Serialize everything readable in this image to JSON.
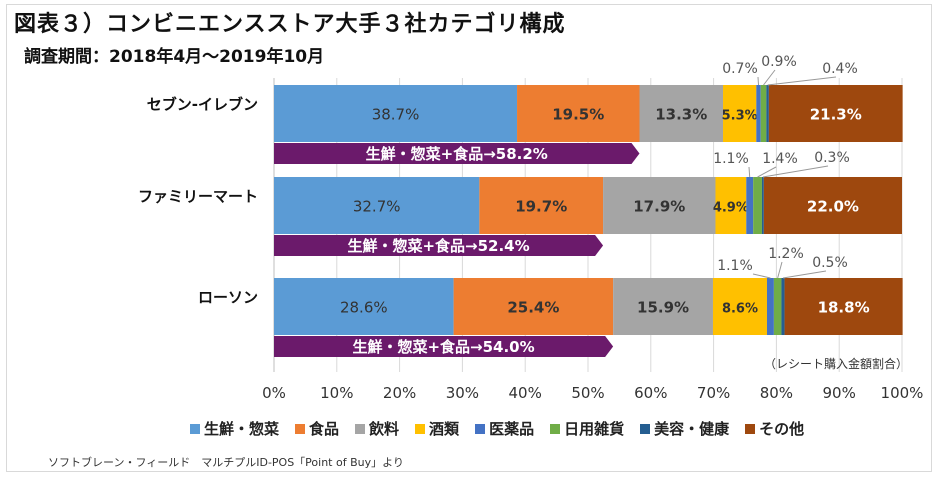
{
  "title": "図表３）コンビニエンスストア大手３社カテゴリ構成",
  "subtitle": "調査期間：2018年4月～2019年10月",
  "note": "（レシート購入金額割合）",
  "source": "ソフトブレーン・フィールド　マルチプルID-POS「Point of Buy」より",
  "chart_data": {
    "type": "bar",
    "orientation": "horizontal",
    "stacked": true,
    "categories": [
      "セブン-イレブン",
      "ファミリーマート",
      "ローソン"
    ],
    "xlim": [
      0,
      100
    ],
    "x_ticks": [
      "0%",
      "10%",
      "20%",
      "30%",
      "40%",
      "50%",
      "60%",
      "70%",
      "80%",
      "90%",
      "100%"
    ],
    "legend_position": "bottom",
    "series": [
      {
        "name": "生鮮・惣菜",
        "color": "#5b9bd5",
        "values": [
          38.7,
          32.7,
          28.6
        ],
        "labels": [
          "38.7%",
          "32.7%",
          "28.6%"
        ]
      },
      {
        "name": "食品",
        "color": "#ed7d31",
        "values": [
          19.5,
          19.7,
          25.4
        ],
        "labels": [
          "19.5%",
          "19.7%",
          "25.4%"
        ]
      },
      {
        "name": "飲料",
        "color": "#a5a5a5",
        "values": [
          13.3,
          17.9,
          15.9
        ],
        "labels": [
          "13.3%",
          "17.9%",
          "15.9%"
        ]
      },
      {
        "name": "酒類",
        "color": "#ffc000",
        "values": [
          5.3,
          4.9,
          8.6
        ],
        "labels": [
          "5.3%",
          "4.9%",
          "8.6%"
        ]
      },
      {
        "name": "医薬品",
        "color": "#4472c4",
        "values": [
          0.7,
          1.1,
          1.1
        ],
        "labels": [
          "0.7%",
          "1.1%",
          "1.1%"
        ]
      },
      {
        "name": "日用雑貨",
        "color": "#70ad47",
        "values": [
          0.9,
          1.4,
          1.2
        ],
        "labels": [
          "0.9%",
          "1.4%",
          "1.2%"
        ]
      },
      {
        "name": "美容・健康",
        "color": "#255e91",
        "values": [
          0.4,
          0.3,
          0.5
        ],
        "labels": [
          "0.4%",
          "0.3%",
          "0.5%"
        ]
      },
      {
        "name": "その他",
        "color": "#9e480e",
        "values": [
          21.3,
          22.0,
          18.8
        ],
        "labels": [
          "21.3%",
          "22.0%",
          "18.8%"
        ]
      }
    ],
    "annotations": [
      {
        "category": "セブン-イレブン",
        "text": "生鮮・惣菜+食品→58.2%",
        "value": 58.2
      },
      {
        "category": "ファミリーマート",
        "text": "生鮮・惣菜+食品→52.4%",
        "value": 52.4
      },
      {
        "category": "ローソン",
        "text": "生鮮・惣菜+食品→54.0%",
        "value": 54.0
      }
    ],
    "annotation_color": "#6b1a6b"
  }
}
